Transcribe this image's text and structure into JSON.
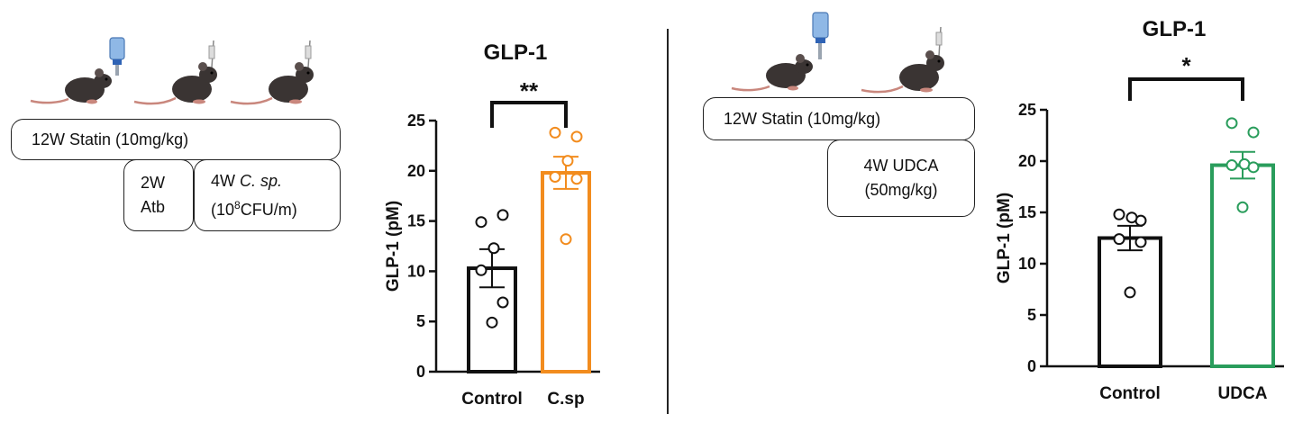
{
  "left_panel": {
    "statin_box": "12W Statin  (10mg/kg)",
    "atb_box": {
      "line1": "2W",
      "line2": "Atb"
    },
    "csp_box": {
      "line1_prefix": "4W ",
      "line1_italic": "C. sp.",
      "line2_prefix": "(10",
      "line2_sup": "8",
      "line2_suffix": "CFU/m)"
    }
  },
  "right_panel": {
    "statin_box": "12W Statin  (10mg/kg)",
    "udca_box": {
      "line1": "4W UDCA",
      "line2": "(50mg/kg)"
    }
  },
  "icons": [
    "mouse-icon",
    "water-bottle-icon",
    "gavage-syringe-icon"
  ],
  "colors": {
    "black": "#111111",
    "orange": "#f28c1e",
    "green": "#2a9d5c"
  },
  "chart_data": [
    {
      "type": "bar",
      "title": "GLP-1",
      "ylabel": "GLP-1 (pM)",
      "ylim": [
        0,
        25
      ],
      "yticks": [
        0,
        5,
        10,
        15,
        20,
        25
      ],
      "categories": [
        "Control",
        "C.sp"
      ],
      "values": [
        10.3,
        19.8
      ],
      "errors": [
        1.9,
        1.6
      ],
      "points": [
        [
          14.9,
          15.6,
          12.3,
          10.1,
          6.9,
          4.9
        ],
        [
          23.8,
          23.4,
          21.0,
          19.4,
          19.2,
          13.2
        ]
      ],
      "colors": [
        "#111111",
        "#f28c1e"
      ],
      "significance": "**"
    },
    {
      "type": "bar",
      "title": "GLP-1",
      "ylabel": "GLP-1 (pM)",
      "ylim": [
        0,
        25
      ],
      "yticks": [
        0,
        5,
        10,
        15,
        20,
        25
      ],
      "categories": [
        "Control",
        "UDCA"
      ],
      "values": [
        12.5,
        19.6
      ],
      "errors": [
        1.2,
        1.3
      ],
      "points": [
        [
          14.8,
          14.2,
          14.5,
          12.4,
          12.1,
          7.2
        ],
        [
          23.7,
          22.8,
          19.7,
          19.6,
          19.4,
          15.5
        ]
      ],
      "colors": [
        "#111111",
        "#2a9d5c"
      ],
      "significance": "*"
    }
  ]
}
